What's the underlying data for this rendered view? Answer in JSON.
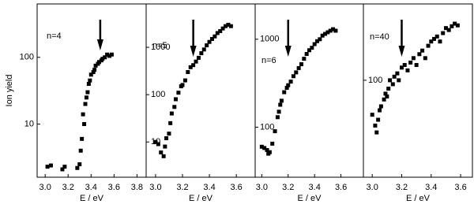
{
  "chart_data": [
    {
      "type": "scatter",
      "label": "n=4",
      "xlabel": "E / eV",
      "ylabel": "Ion yield",
      "log_y": true,
      "color": "#000000",
      "arrow_x": 3.48,
      "xlim": [
        2.93,
        3.88
      ],
      "ylim": [
        1.6,
        630
      ],
      "xticks": [
        {
          "value": 3.0,
          "label": "3.0"
        },
        {
          "value": 3.2,
          "label": "3.2"
        },
        {
          "value": 3.4,
          "label": "3.4"
        },
        {
          "value": 3.6,
          "label": "3.6"
        },
        {
          "value": 3.8,
          "label": "3.8"
        }
      ],
      "yticks": [
        10,
        100
      ],
      "x": [
        3.02,
        3.05,
        3.15,
        3.17,
        3.28,
        3.3,
        3.31,
        3.32,
        3.33,
        3.34,
        3.35,
        3.36,
        3.37,
        3.38,
        3.39,
        3.4,
        3.42,
        3.43,
        3.44,
        3.46,
        3.47,
        3.49,
        3.5,
        3.52,
        3.54,
        3.56,
        3.58
      ],
      "y": [
        2.3,
        2.4,
        2.1,
        2.3,
        2.2,
        2.5,
        4,
        6,
        14,
        10,
        20,
        25,
        30,
        40,
        45,
        55,
        60,
        65,
        75,
        80,
        85,
        90,
        95,
        100,
        110,
        105,
        110
      ]
    },
    {
      "type": "scatter",
      "label": "n=5",
      "xlabel": "E / eV",
      "log_y": true,
      "color": "#000000",
      "arrow_x": 3.28,
      "xlim": [
        2.93,
        3.74
      ],
      "ylim": [
        1.8,
        8250
      ],
      "xticks": [
        {
          "value": 3.0,
          "label": "3.0"
        },
        {
          "value": 3.2,
          "label": "3.2"
        },
        {
          "value": 3.4,
          "label": "3.4"
        },
        {
          "value": 3.6,
          "label": "3.6"
        }
      ],
      "yticks": [
        10,
        100,
        1000
      ],
      "x": [
        3.0,
        3.02,
        3.04,
        3.06,
        3.07,
        3.08,
        3.1,
        3.11,
        3.12,
        3.14,
        3.15,
        3.17,
        3.19,
        3.2,
        3.22,
        3.24,
        3.26,
        3.28,
        3.3,
        3.32,
        3.34,
        3.36,
        3.38,
        3.4,
        3.42,
        3.44,
        3.46,
        3.48,
        3.5,
        3.52,
        3.54,
        3.56
      ],
      "y": [
        10,
        9,
        6,
        5,
        8,
        12,
        15,
        25,
        40,
        55,
        80,
        110,
        150,
        160,
        200,
        300,
        380,
        420,
        500,
        600,
        750,
        900,
        1100,
        1300,
        1500,
        1700,
        2000,
        2200,
        2500,
        2800,
        3000,
        2800
      ]
    },
    {
      "type": "scatter",
      "label": "n=6",
      "xlabel": "E / eV",
      "log_y": true,
      "color": "#000000",
      "arrow_x": 3.2,
      "xlim": [
        2.95,
        3.77
      ],
      "ylim": [
        27,
        2520
      ],
      "xticks": [
        {
          "value": 3.0,
          "label": "3.0"
        },
        {
          "value": 3.2,
          "label": "3.2"
        },
        {
          "value": 3.4,
          "label": "3.4"
        },
        {
          "value": 3.6,
          "label": "3.6"
        }
      ],
      "yticks": [
        100,
        1000
      ],
      "x": [
        3.0,
        3.02,
        3.04,
        3.05,
        3.06,
        3.08,
        3.1,
        3.12,
        3.13,
        3.14,
        3.15,
        3.17,
        3.19,
        3.2,
        3.22,
        3.24,
        3.26,
        3.28,
        3.3,
        3.32,
        3.34,
        3.36,
        3.38,
        3.4,
        3.42,
        3.44,
        3.46,
        3.48,
        3.5,
        3.52,
        3.54,
        3.56
      ],
      "y": [
        60,
        58,
        55,
        50,
        52,
        65,
        90,
        130,
        150,
        180,
        200,
        250,
        280,
        300,
        330,
        380,
        420,
        470,
        520,
        600,
        680,
        750,
        800,
        880,
        950,
        1000,
        1100,
        1150,
        1200,
        1250,
        1300,
        1250
      ]
    },
    {
      "type": "scatter",
      "label": "n=40",
      "xlabel": "E / eV",
      "log_y": true,
      "color": "#000000",
      "arrow_x": 3.2,
      "xlim": [
        2.94,
        3.68
      ],
      "ylim": [
        7.6,
        760
      ],
      "xticks": [
        {
          "value": 3.0,
          "label": "3.0"
        },
        {
          "value": 3.2,
          "label": "3.2"
        },
        {
          "value": 3.4,
          "label": "3.4"
        },
        {
          "value": 3.6,
          "label": "3.6"
        }
      ],
      "yticks": [
        100
      ],
      "x": [
        3.0,
        3.02,
        3.03,
        3.04,
        3.05,
        3.06,
        3.08,
        3.09,
        3.1,
        3.11,
        3.12,
        3.14,
        3.15,
        3.17,
        3.18,
        3.2,
        3.22,
        3.24,
        3.26,
        3.28,
        3.3,
        3.32,
        3.34,
        3.36,
        3.38,
        3.4,
        3.42,
        3.44,
        3.46,
        3.48,
        3.5,
        3.52,
        3.54,
        3.56,
        3.58
      ],
      "y": [
        40,
        30,
        25,
        35,
        45,
        50,
        60,
        70,
        65,
        80,
        100,
        90,
        110,
        120,
        100,
        140,
        150,
        130,
        160,
        180,
        150,
        200,
        220,
        180,
        250,
        280,
        300,
        320,
        280,
        350,
        400,
        380,
        420,
        450,
        430
      ]
    }
  ]
}
